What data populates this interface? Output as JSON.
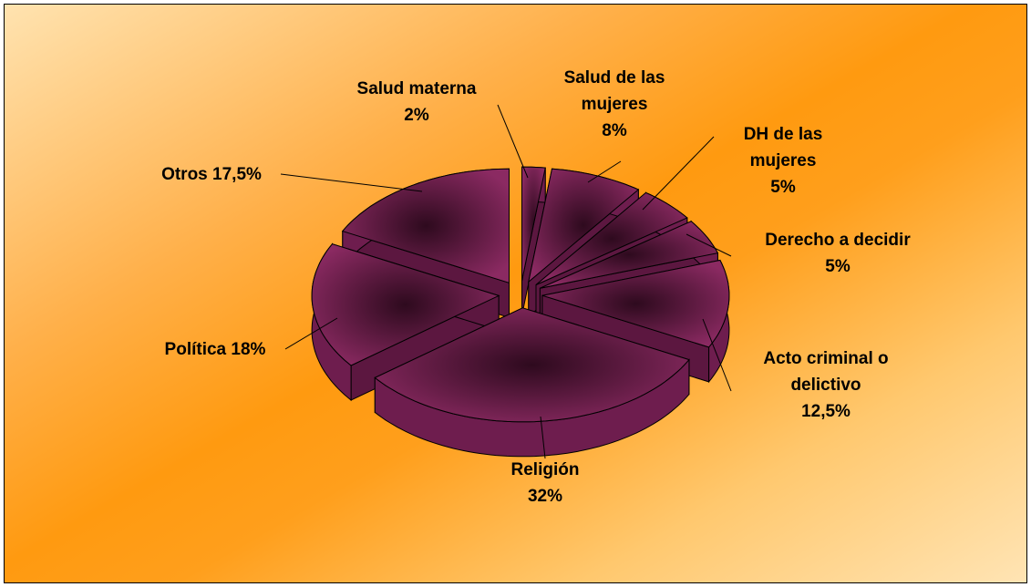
{
  "chart_data": {
    "type": "pie3d",
    "categories": [
      "Salud materna",
      "Salud de las mujeres",
      "DH de las mujeres",
      "Derecho a decidir",
      "Acto criminal o delictivo",
      "Religión",
      "Política",
      "Otros"
    ],
    "values": [
      2,
      8,
      5,
      5,
      12.5,
      32,
      18,
      17.5
    ],
    "value_labels": [
      "2%",
      "8%",
      "5%",
      "5%",
      "12,5%",
      "32%",
      "18%",
      "17,5%"
    ],
    "color": "#8b2a62",
    "exploded": true
  }
}
